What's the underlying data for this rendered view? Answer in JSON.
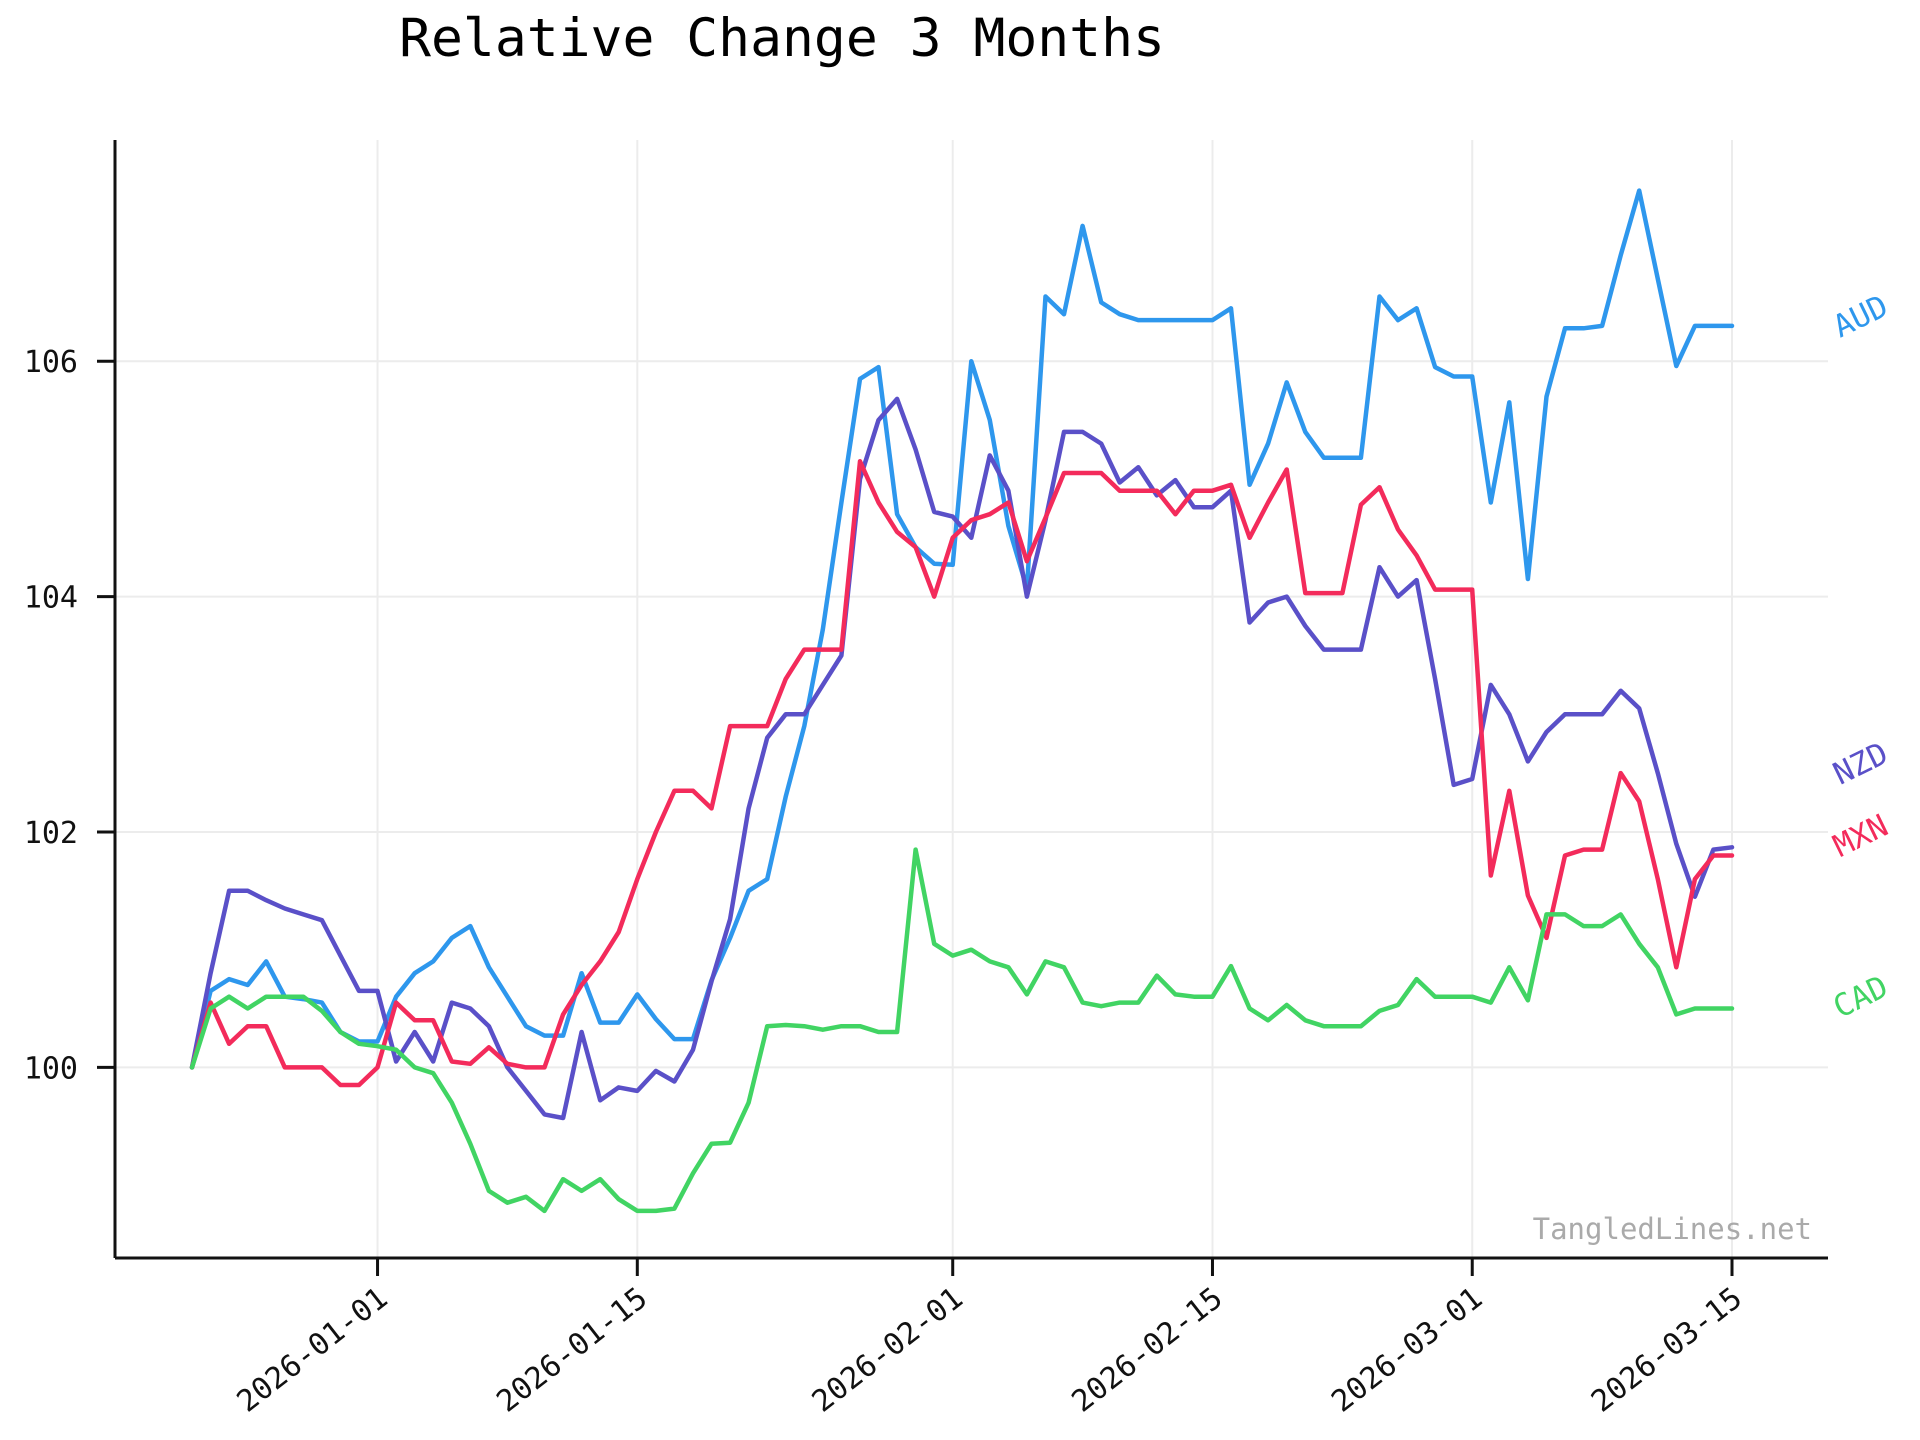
{
  "title": "Relative Change 3 Months",
  "watermark": "TangledLines.net",
  "chart_data": {
    "type": "line",
    "x_unit": "day",
    "x_start_date": "2025-12-22",
    "x_end_date": "2026-03-15",
    "n_points": 84,
    "xticks": [
      {
        "index": 10,
        "label": "2026-01-01"
      },
      {
        "index": 24,
        "label": "2026-01-15"
      },
      {
        "index": 41,
        "label": "2026-02-01"
      },
      {
        "index": 55,
        "label": "2026-02-15"
      },
      {
        "index": 69,
        "label": "2026-03-01"
      },
      {
        "index": 83,
        "label": "2026-03-15"
      }
    ],
    "yticks": [
      100,
      102,
      104,
      106
    ],
    "ylim": [
      98.38,
      107.88
    ],
    "grid": true,
    "legend_position": "right-edge-inline",
    "axis_color": "#111111",
    "grid_color": "#ececec",
    "series": [
      {
        "name": "AUD",
        "color": "#2e97ed",
        "label_dy": 12,
        "values": [
          100.0,
          100.65,
          100.75,
          100.7,
          100.9,
          100.6,
          100.58,
          100.55,
          100.3,
          100.22,
          100.22,
          100.6,
          100.8,
          100.9,
          101.1,
          101.2,
          100.85,
          100.6,
          100.35,
          100.27,
          100.27,
          100.8,
          100.38,
          100.38,
          100.62,
          100.41,
          100.24,
          100.24,
          100.74,
          101.1,
          101.5,
          101.6,
          102.3,
          102.9,
          103.72,
          104.8,
          105.85,
          105.95,
          104.7,
          104.42,
          104.28,
          104.27,
          106.0,
          105.5,
          104.6,
          104.07,
          106.55,
          106.4,
          107.15,
          106.5,
          106.4,
          106.35,
          106.35,
          106.35,
          106.35,
          106.35,
          106.45,
          104.95,
          105.3,
          105.82,
          105.4,
          105.18,
          105.18,
          105.18,
          106.55,
          106.35,
          106.45,
          105.95,
          105.87,
          105.87,
          104.8,
          105.65,
          104.15,
          105.7,
          106.28,
          106.28,
          106.3,
          106.9,
          107.45,
          106.7,
          105.96,
          106.3,
          106.3,
          106.3
        ]
      },
      {
        "name": "NZD",
        "color": "#5a50c8",
        "label_dy": -62,
        "values": [
          100.0,
          100.8,
          101.5,
          101.5,
          101.42,
          101.35,
          101.3,
          101.25,
          100.95,
          100.65,
          100.65,
          100.05,
          100.3,
          100.05,
          100.55,
          100.5,
          100.35,
          100.0,
          99.8,
          99.6,
          99.57,
          100.3,
          99.72,
          99.83,
          99.8,
          99.97,
          99.88,
          100.15,
          100.73,
          101.26,
          102.2,
          102.8,
          103.0,
          103.0,
          103.25,
          103.5,
          105.0,
          105.5,
          105.68,
          105.25,
          104.72,
          104.68,
          104.5,
          105.2,
          104.9,
          104.0,
          104.65,
          105.4,
          105.4,
          105.3,
          104.97,
          105.1,
          104.86,
          104.99,
          104.76,
          104.76,
          104.9,
          103.78,
          103.95,
          104.0,
          103.75,
          103.55,
          103.55,
          103.55,
          104.25,
          104.0,
          104.14,
          103.3,
          102.4,
          102.45,
          103.25,
          103.0,
          102.6,
          102.85,
          103.0,
          103.0,
          103.0,
          103.2,
          103.05,
          102.5,
          101.9,
          101.45,
          101.85,
          101.87
        ]
      },
      {
        "name": "MXN",
        "color": "#f32b5b",
        "label_dy": 2,
        "values": [
          100.0,
          100.55,
          100.2,
          100.35,
          100.35,
          100.0,
          100.0,
          100.0,
          99.85,
          99.85,
          100.0,
          100.55,
          100.4,
          100.4,
          100.05,
          100.03,
          100.17,
          100.03,
          100.0,
          100.0,
          100.45,
          100.7,
          100.9,
          101.15,
          101.6,
          102.0,
          102.35,
          102.35,
          102.2,
          102.9,
          102.9,
          102.9,
          103.3,
          103.55,
          103.55,
          103.55,
          105.15,
          104.8,
          104.55,
          104.42,
          104.0,
          104.5,
          104.65,
          104.7,
          104.8,
          104.3,
          104.67,
          105.05,
          105.05,
          105.05,
          104.9,
          104.9,
          104.9,
          104.7,
          104.9,
          104.9,
          104.95,
          104.5,
          104.8,
          105.08,
          104.03,
          104.03,
          104.03,
          104.78,
          104.93,
          104.57,
          104.35,
          104.06,
          104.06,
          104.06,
          101.63,
          102.35,
          101.46,
          101.1,
          101.8,
          101.85,
          101.85,
          102.5,
          102.26,
          101.6,
          100.85,
          101.6,
          101.8,
          101.8
        ]
      },
      {
        "name": "CAD",
        "color": "#41d463",
        "label_dy": 10,
        "values": [
          100.0,
          100.5,
          100.6,
          100.5,
          100.6,
          100.6,
          100.6,
          100.48,
          100.3,
          100.2,
          100.18,
          100.15,
          100.0,
          99.95,
          99.7,
          99.35,
          98.95,
          98.85,
          98.9,
          98.78,
          99.05,
          98.95,
          99.05,
          98.88,
          98.78,
          98.78,
          98.8,
          99.1,
          99.35,
          99.36,
          99.7,
          100.35,
          100.36,
          100.35,
          100.32,
          100.35,
          100.35,
          100.3,
          100.3,
          101.85,
          101.05,
          100.95,
          101.0,
          100.9,
          100.85,
          100.62,
          100.9,
          100.85,
          100.55,
          100.52,
          100.55,
          100.55,
          100.78,
          100.62,
          100.6,
          100.6,
          100.86,
          100.5,
          100.4,
          100.53,
          100.4,
          100.35,
          100.35,
          100.35,
          100.48,
          100.53,
          100.75,
          100.6,
          100.6,
          100.6,
          100.55,
          100.85,
          100.57,
          101.3,
          101.3,
          101.2,
          101.2,
          101.3,
          101.05,
          100.85,
          100.45,
          100.5,
          100.5,
          100.5
        ]
      }
    ]
  }
}
